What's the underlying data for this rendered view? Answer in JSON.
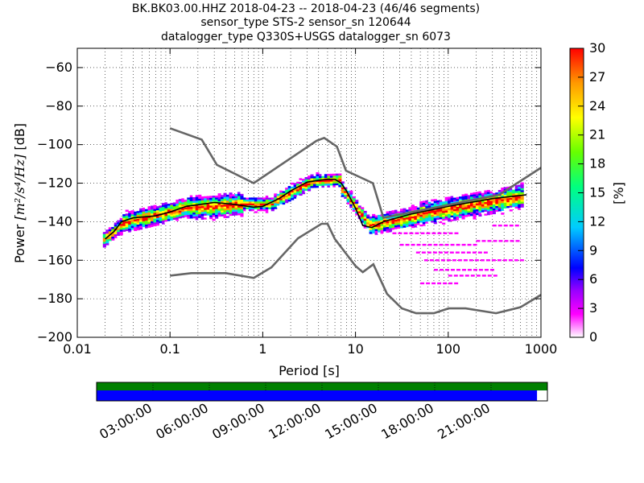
{
  "title": {
    "line1": "BK.BK03.00.HHZ   2018-04-23 -- 2018-04-23  (46/46 segments)",
    "line2": "sensor_type STS-2 sensor_sn 120644",
    "line3": "datalogger_type Q330S+USGS datalogger_sn 6073"
  },
  "chart_data": {
    "type": "heatmap",
    "xlabel": "Period [s]",
    "ylabel_prefix": "Power ",
    "ylabel_units": "[m²/s⁴/Hz]",
    "ylabel_suffix": " [dB]",
    "x_scale": "log",
    "xlim": [
      0.01,
      1000
    ],
    "ylim": [
      -200,
      -50
    ],
    "x_ticks": [
      0.01,
      0.1,
      1,
      10,
      100,
      1000
    ],
    "x_tick_labels": [
      "0.01",
      "0.1",
      "1",
      "10",
      "100",
      "1000"
    ],
    "y_ticks": [
      -200,
      -180,
      -160,
      -140,
      -120,
      -100,
      -80,
      -60
    ],
    "y_tick_labels": [
      "−200",
      "−180",
      "−160",
      "−140",
      "−120",
      "−100",
      "−80",
      "−60"
    ],
    "grid": true,
    "colorbar": {
      "label": "[%]",
      "range": [
        0,
        30
      ],
      "ticks": [
        0,
        3,
        6,
        9,
        12,
        15,
        18,
        21,
        24,
        27,
        30
      ],
      "colormap_stops": [
        "#ffffff",
        "#ff00ff",
        "#9b00ff",
        "#0000ff",
        "#00ccff",
        "#00ff80",
        "#66ff00",
        "#ffff00",
        "#ff9900",
        "#ff0000"
      ]
    },
    "nhnm": [
      {
        "period": 0.1,
        "db": -91.5
      },
      {
        "period": 0.22,
        "db": -97.4
      },
      {
        "period": 0.32,
        "db": -110.5
      },
      {
        "period": 0.8,
        "db": -120
      },
      {
        "period": 3.8,
        "db": -98
      },
      {
        "period": 4.6,
        "db": -96.5
      },
      {
        "period": 6.3,
        "db": -101
      },
      {
        "period": 7.9,
        "db": -113.5
      },
      {
        "period": 15.4,
        "db": -120
      },
      {
        "period": 20,
        "db": -138
      },
      {
        "period": 354.8,
        "db": -126
      },
      {
        "period": 1000,
        "db": -112
      }
    ],
    "nlnm": [
      {
        "period": 0.1,
        "db": -168
      },
      {
        "period": 0.17,
        "db": -166.7
      },
      {
        "period": 0.4,
        "db": -166.7
      },
      {
        "period": 0.8,
        "db": -169.2
      },
      {
        "period": 1.24,
        "db": -163.7
      },
      {
        "period": 2.4,
        "db": -148.6
      },
      {
        "period": 4.3,
        "db": -141.1
      },
      {
        "period": 5,
        "db": -141.1
      },
      {
        "period": 6,
        "db": -149
      },
      {
        "period": 10,
        "db": -163
      },
      {
        "period": 12,
        "db": -166.2
      },
      {
        "period": 15.6,
        "db": -162.1
      },
      {
        "period": 21.9,
        "db": -177.5
      },
      {
        "period": 31.6,
        "db": -185
      },
      {
        "period": 45,
        "db": -187.5
      },
      {
        "period": 70,
        "db": -187.5
      },
      {
        "period": 101,
        "db": -185
      },
      {
        "period": 154,
        "db": -185
      },
      {
        "period": 328,
        "db": -187.5
      },
      {
        "period": 600,
        "db": -184.4
      },
      {
        "period": 1000,
        "db": -178
      }
    ],
    "mean_psd": [
      {
        "period": 0.02,
        "db": -149
      },
      {
        "period": 0.025,
        "db": -145
      },
      {
        "period": 0.03,
        "db": -140
      },
      {
        "period": 0.04,
        "db": -138
      },
      {
        "period": 0.07,
        "db": -137
      },
      {
        "period": 0.1,
        "db": -135
      },
      {
        "period": 0.15,
        "db": -132
      },
      {
        "period": 0.3,
        "db": -130
      },
      {
        "period": 0.5,
        "db": -131
      },
      {
        "period": 0.8,
        "db": -132.5
      },
      {
        "period": 1,
        "db": -132
      },
      {
        "period": 1.5,
        "db": -128
      },
      {
        "period": 2,
        "db": -124
      },
      {
        "period": 3,
        "db": -119.5
      },
      {
        "period": 4,
        "db": -118.5
      },
      {
        "period": 5,
        "db": -118
      },
      {
        "period": 6,
        "db": -118
      },
      {
        "period": 7,
        "db": -120
      },
      {
        "period": 8,
        "db": -124
      },
      {
        "period": 10,
        "db": -133
      },
      {
        "period": 12,
        "db": -142
      },
      {
        "period": 15,
        "db": -143
      },
      {
        "period": 20,
        "db": -140
      },
      {
        "period": 40,
        "db": -136
      },
      {
        "period": 100,
        "db": -132
      },
      {
        "period": 300,
        "db": -128
      },
      {
        "period": 700,
        "db": -126
      }
    ],
    "heat_bands": [
      {
        "from": 0.019,
        "to": 0.03,
        "center": [
          -150,
          -142
        ],
        "halfwidth": 2.5
      },
      {
        "from": 0.03,
        "to": 0.15,
        "center": [
          -141,
          -133
        ],
        "halfwidth": 4
      },
      {
        "from": 0.15,
        "to": 0.6,
        "center": [
          -133,
          -131
        ],
        "halfwidth": 5
      },
      {
        "from": 0.6,
        "to": 1.3,
        "center": [
          -131,
          -131
        ],
        "halfwidth": 2
      },
      {
        "from": 1.3,
        "to": 3.2,
        "center": [
          -130,
          -120
        ],
        "halfwidth": 2.5
      },
      {
        "from": 3.2,
        "to": 7,
        "center": [
          -119,
          -118.5
        ],
        "halfwidth": 2
      },
      {
        "from": 7,
        "to": 14,
        "center": [
          -122,
          -141
        ],
        "halfwidth": 2.5
      },
      {
        "from": 14,
        "to": 50,
        "center": [
          -142,
          -137
        ],
        "halfwidth": 4
      },
      {
        "from": 50,
        "to": 650,
        "center": [
          -136,
          -127
        ],
        "halfwidth": 5
      }
    ],
    "low_outlier_lines": [
      {
        "from": 25,
        "to": 120,
        "db": -146
      },
      {
        "from": 30,
        "to": 200,
        "db": -152
      },
      {
        "from": 45,
        "to": 250,
        "db": -156
      },
      {
        "from": 55,
        "to": 600,
        "db": -160
      },
      {
        "from": 70,
        "to": 300,
        "db": -165
      },
      {
        "from": 100,
        "to": 350,
        "db": -168
      },
      {
        "from": 50,
        "to": 120,
        "db": -172
      },
      {
        "from": 200,
        "to": 600,
        "db": -150
      },
      {
        "from": 300,
        "to": 600,
        "db": -142
      }
    ]
  },
  "timeline": {
    "tick_labels": [
      "03:00:00",
      "06:00:00",
      "09:00:00",
      "12:00:00",
      "15:00:00",
      "18:00:00",
      "21:00:00"
    ],
    "data_coverage_fraction": 0.977,
    "top_bar_color": "#008000",
    "data_bar_color": "#0000ff"
  }
}
